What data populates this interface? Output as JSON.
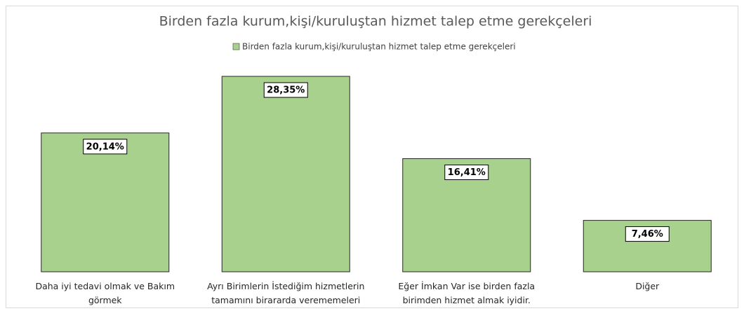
{
  "chart_data": {
    "type": "bar",
    "title": "Birden fazla kurum,kişi/kuruluştan hizmet talep etme gerekçeleri",
    "series": [
      {
        "name": "Birden fazla kurum,kişi/kuruluştan hizmet talep etme gerekçeleri",
        "color": "#a9d18e",
        "values": [
          20.14,
          28.35,
          16.41,
          7.46
        ],
        "value_labels": [
          "20,14%",
          "28,35%",
          "16,41%",
          "7,46%"
        ]
      }
    ],
    "categories": [
      "Daha iyi tedavi olmak ve Bakım görmek",
      "Ayrı Birimlerin İstediğim hizmetlerin tamamını birararda verememeleri",
      "Eğer İmkan Var ise birden fazla birimden hizmet almak iyidir.",
      "Diğer"
    ],
    "grid": false
  }
}
